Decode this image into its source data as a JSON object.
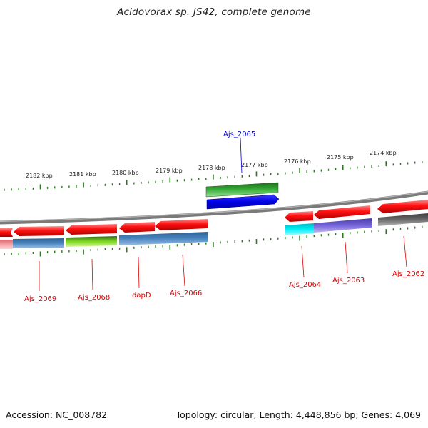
{
  "title": "Acidovorax sp. JS42, complete genome",
  "footer": {
    "accession": "Accession: NC_008782",
    "summary": "Topology: circular; Length: 4,448,856 bp; Genes: 4,069"
  },
  "scale_labels": [
    "2182 kbp",
    "2181 kbp",
    "2180 kbp",
    "2179 kbp",
    "2178 kbp",
    "2177 kbp",
    "2176 kbp",
    "2175 kbp",
    "2174 kbp"
  ],
  "gene_labels": [
    {
      "name": "Ajs_2065",
      "color": "#0000cc"
    },
    {
      "name": "Ajs_2069",
      "color": "#dd0000"
    },
    {
      "name": "Ajs_2068",
      "color": "#dd0000"
    },
    {
      "name": "dapD",
      "color": "#dd0000"
    },
    {
      "name": "Ajs_2066",
      "color": "#dd0000"
    },
    {
      "name": "Ajs_2064",
      "color": "#dd0000"
    },
    {
      "name": "Ajs_2063",
      "color": "#dd0000"
    },
    {
      "name": "Ajs_2062",
      "color": "#dd0000"
    }
  ],
  "colors": {
    "gene_arrow": "#e8000e",
    "forward_gene": "#0000e0",
    "cog_green": "#2e9a2e",
    "cog_steelblue": "#3f78b4",
    "cog_lime": "#7ed21e",
    "cog_cyan": "#00e0e8",
    "cog_slateblue": "#6a5ad0",
    "cog_gray": "#606060",
    "cog_pink": "#f08c90",
    "backbone": "#7a7a7a",
    "tick": "#2a7a1e"
  }
}
